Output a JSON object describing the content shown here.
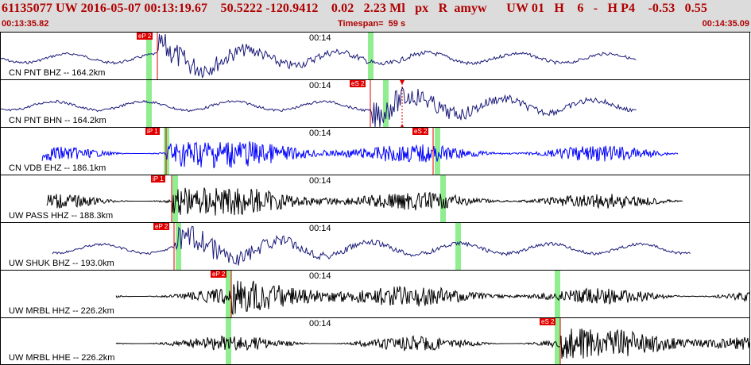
{
  "header": {
    "info_line": "61135077 UW 2016-05-07 00:13:19.67    50.5222 -120.9412    0.02   2.23 Ml   px   R  amyw      UW 01   H    6   -   H P4    -0.53   0.55",
    "start_time": "00:13:35.82",
    "timespan_label": "Timespan=  59 s",
    "end_time": "00:14:35.09"
  },
  "tick_label": "00:14",
  "colors": {
    "header_bg": "#dcdcdc",
    "header_text": "#b00000",
    "pick_line": "#e00000",
    "pick_label_bg": "#e00000",
    "pick_label_text": "#ffffff",
    "window_band": "#90ee90",
    "trace_navy": "#1a1a7a",
    "trace_blue": "#0000ff",
    "trace_black": "#000000"
  },
  "panels": [
    {
      "station": "CN PNT BHZ -- 164.2km",
      "trace_color": "navy",
      "trace_style": "low",
      "picks": [
        {
          "label": "eP 2",
          "time": "00:13:48.2"
        },
        {
          "label": "",
          "time": "00:13:47.5",
          "window": true
        },
        {
          "label": "",
          "time": "00:14:05.0",
          "window": true
        }
      ]
    },
    {
      "station": "CN PNT BHN -- 164.2km",
      "trace_color": "navy",
      "trace_style": "low",
      "picks": [
        {
          "label": "eS 2",
          "time": "00:14:05.0"
        },
        {
          "label": "",
          "time": "00:13:47.5",
          "window": true
        },
        {
          "label": "",
          "time": "00:14:06.2",
          "window": true
        }
      ],
      "marker": "red-triangles"
    },
    {
      "station": "CN VDB EHZ -- 186.1km",
      "trace_color": "blue",
      "trace_style": "high",
      "picks": [
        {
          "label": "iP 1",
          "time": "00:13:48.9"
        },
        {
          "label": "eS 2",
          "time": "00:14:10.0"
        },
        {
          "label": "",
          "time": "00:13:48.9",
          "window": true
        },
        {
          "label": "",
          "time": "00:14:10.3",
          "window": true
        }
      ]
    },
    {
      "station": "UW PASS HHZ -- 188.3km",
      "trace_color": "black",
      "trace_style": "high",
      "picks": [
        {
          "label": "iP 1",
          "time": "00:13:49.3"
        },
        {
          "label": "",
          "time": "00:13:49.6",
          "window": true
        },
        {
          "label": "",
          "time": "00:14:10.7",
          "window": true
        }
      ]
    },
    {
      "station": "UW SHUK BHZ -- 193.0km",
      "trace_color": "navy",
      "trace_style": "low",
      "picks": [
        {
          "label": "eP 2",
          "time": "00:13:49.5"
        },
        {
          "label": "",
          "time": "00:13:49.8",
          "window": true
        },
        {
          "label": "",
          "time": "00:14:11.9",
          "window": true
        }
      ]
    },
    {
      "station": "UW MRBL HHZ -- 226.2km",
      "trace_color": "black",
      "trace_style": "high",
      "picks": [
        {
          "label": "eP 2",
          "time": "00:13:54.0"
        },
        {
          "label": "",
          "time": "00:13:53.8",
          "window": true
        },
        {
          "label": "",
          "time": "00:14:19.8",
          "window": true
        }
      ]
    },
    {
      "station": "UW MRBL HHE -- 226.2km",
      "trace_color": "black",
      "trace_style": "high",
      "picks": [
        {
          "label": "eS 2",
          "time": "00:14:20.0"
        },
        {
          "label": "",
          "time": "00:13:53.8",
          "window": true
        },
        {
          "label": "",
          "time": "00:14:19.8",
          "window": true
        }
      ]
    }
  ]
}
